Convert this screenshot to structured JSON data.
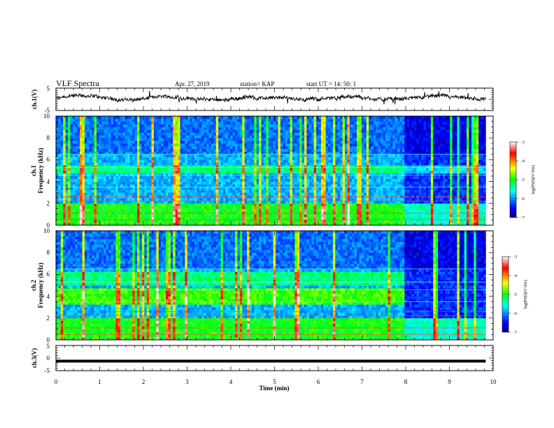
{
  "header": {
    "title": "VLF Spectra",
    "date": "Apr. 27, 2019",
    "station": "station= KAP",
    "start": "start  UT =   14: 50: 1"
  },
  "chart_data": [
    {
      "type": "line",
      "panel": "ch1-waveform",
      "ylabel": "ch.1(V)",
      "ylim": [
        -5,
        5
      ],
      "y_ticks": [
        "5",
        "-5"
      ],
      "xlim": [
        0,
        10
      ],
      "data_extent_min": 9.83,
      "baseline_v": 0.4,
      "color": "#000000"
    },
    {
      "type": "heatmap",
      "panel": "ch1-spectrogram",
      "ylabel": [
        "ch.1",
        "Frequency  (kHz)"
      ],
      "ylim": [
        0,
        10
      ],
      "y_ticks": [
        "0",
        "2",
        "4",
        "6",
        "8",
        "10"
      ],
      "xlim": [
        0,
        10
      ],
      "colorbar": {
        "label": "log(PSD)(V²/Hz)",
        "range": [
          -7,
          -3
        ],
        "ticks": [
          "-3",
          "-4",
          "-5",
          "-6",
          "-7"
        ]
      }
    },
    {
      "type": "heatmap",
      "panel": "ch2-spectrogram",
      "ylabel": [
        "ch.2",
        "Frequency  (kHz)"
      ],
      "ylim": [
        0,
        10
      ],
      "y_ticks": [
        "0",
        "2",
        "4",
        "6",
        "8",
        "10"
      ],
      "xlim": [
        0,
        10
      ],
      "colorbar": {
        "label": "log(PSD)(V²/Hz)",
        "range": [
          -7,
          -3
        ],
        "ticks": [
          "-3",
          "-4",
          "-5",
          "-6",
          "-7"
        ]
      }
    },
    {
      "type": "line",
      "panel": "ch3-waveform",
      "ylabel": "ch.3(V)",
      "ylim": [
        -5,
        5
      ],
      "y_ticks": [
        "5",
        "0",
        "-5"
      ],
      "xlim": [
        0,
        10
      ],
      "data_extent_min": 9.83,
      "constant_v": -1.2,
      "xlabel": "Time  (min)",
      "x_ticks": [
        "0",
        "1",
        "2",
        "3",
        "4",
        "5",
        "6",
        "7",
        "8",
        "9",
        "10"
      ]
    }
  ]
}
